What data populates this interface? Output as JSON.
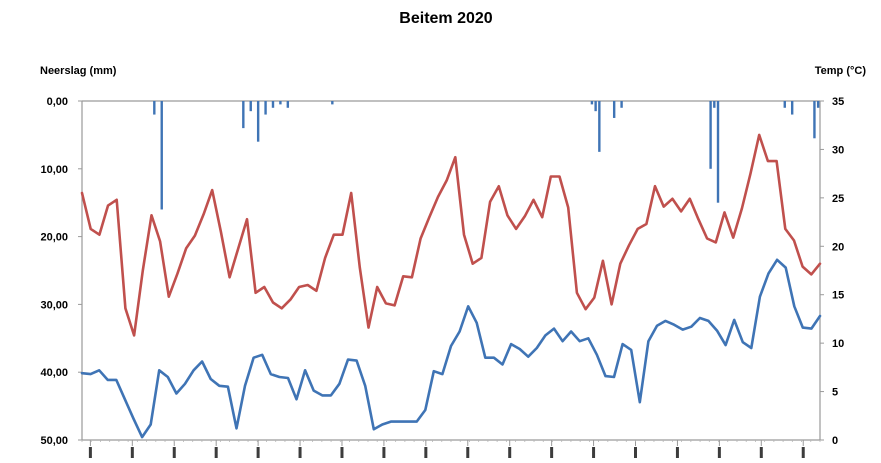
{
  "chart_data": {
    "type": "bar+line",
    "title": "Beitem 2020",
    "left_axis": {
      "label": "Neerslag (mm)",
      "ticks": [
        "0,00",
        "10,00",
        "20,00",
        "30,00",
        "40,00",
        "50,00"
      ],
      "range": [
        0,
        50
      ],
      "inverted": true
    },
    "right_axis": {
      "label": "Temp (°C)",
      "ticks": [
        "35",
        "30",
        "25",
        "20",
        "15",
        "10",
        "5",
        "0"
      ],
      "range": [
        0,
        35
      ]
    },
    "grid": false,
    "legend": "none",
    "x_tick_count": 18,
    "series": [
      {
        "kind": "bar",
        "axis": "left",
        "color": "#3f74b5",
        "values": [
          0,
          0,
          0,
          0,
          0,
          0,
          0,
          0,
          0,
          0,
          0,
          0,
          0,
          0,
          0,
          0,
          0,
          0,
          0,
          2,
          0,
          16,
          0,
          0,
          0,
          0,
          0,
          0,
          0,
          0,
          0,
          0,
          0,
          0,
          0,
          0,
          0,
          0,
          0,
          0,
          0,
          0,
          0,
          4,
          0,
          1.5,
          0,
          6,
          0,
          2,
          0,
          1,
          0,
          0.5,
          0,
          1,
          0,
          0,
          0,
          0,
          0,
          0,
          0,
          0,
          0,
          0,
          0,
          0.5,
          0,
          0,
          0,
          0,
          0,
          0,
          0,
          0,
          0,
          0,
          0,
          0,
          0,
          0,
          0,
          0,
          0,
          0,
          0,
          0,
          0,
          0,
          0,
          0,
          0,
          0,
          0,
          0,
          0,
          0,
          0,
          0,
          0,
          0,
          0,
          0,
          0,
          0,
          0,
          0,
          0,
          0,
          0,
          0,
          0,
          0,
          0,
          0,
          0,
          0,
          0,
          0,
          0,
          0,
          0,
          0,
          0,
          0,
          0,
          0,
          0,
          0,
          0,
          0,
          0,
          0,
          0,
          0,
          0,
          0.5,
          1.5,
          7.5,
          0,
          0,
          0,
          2.5,
          0,
          1,
          0,
          0,
          0,
          0,
          0,
          0,
          0,
          0,
          0,
          0,
          0,
          0,
          0,
          0,
          0,
          0,
          0,
          0,
          0,
          0,
          0,
          0,
          0,
          10,
          1,
          15,
          0,
          0,
          0,
          0,
          0,
          0,
          0,
          0,
          0,
          0,
          0,
          0,
          0,
          0,
          0,
          0,
          0,
          1,
          0,
          2,
          0,
          0,
          0,
          0,
          0,
          5.5,
          1
        ]
      },
      {
        "kind": "line",
        "axis": "right",
        "color": "#c0504d",
        "values": [
          25.5,
          21.8,
          21.2,
          24.2,
          24.8,
          13.6,
          10.8,
          17.5,
          23.2,
          20.5,
          14.8,
          17.2,
          19.8,
          21.1,
          23.3,
          25.8,
          21.5,
          16.8,
          19.8,
          22.8,
          15.2,
          15.8,
          14.2,
          13.6,
          14.5,
          15.8,
          16.0,
          15.4,
          18.8,
          21.2,
          21.2,
          25.5,
          17.8,
          11.6,
          15.8,
          14.1,
          13.9,
          16.9,
          16.8,
          20.8,
          23.0,
          25.1,
          26.8,
          29.2,
          21.2,
          18.2,
          18.8,
          24.6,
          26.2,
          23.2,
          21.8,
          23.1,
          24.8,
          23.0,
          27.2,
          27.2,
          24.0,
          15.2,
          13.5,
          14.7,
          18.5,
          14.0,
          18.2,
          20.1,
          21.8,
          22.3,
          26.2,
          24.1,
          24.9,
          23.6,
          24.9,
          22.8,
          20.8,
          20.4,
          23.5,
          20.9,
          23.9,
          27.5,
          31.5,
          28.8,
          28.8,
          21.8,
          20.6,
          17.9,
          17.1,
          18.2
        ]
      },
      {
        "kind": "line",
        "axis": "right",
        "color": "#3f74b5",
        "values": [
          6.9,
          6.8,
          7.2,
          6.2,
          6.2,
          4.2,
          2.2,
          0.3,
          1.6,
          7.2,
          6.5,
          4.8,
          5.8,
          7.2,
          8.1,
          6.3,
          5.6,
          5.5,
          1.2,
          5.6,
          8.5,
          8.8,
          6.8,
          6.5,
          6.4,
          4.2,
          7.2,
          5.1,
          4.6,
          4.6,
          5.8,
          8.3,
          8.2,
          5.6,
          1.1,
          1.6,
          1.9,
          1.9,
          1.9,
          1.9,
          3.1,
          7.1,
          6.8,
          9.7,
          11.2,
          13.8,
          12.1,
          8.5,
          8.5,
          7.8,
          9.9,
          9.4,
          8.6,
          9.5,
          10.8,
          11.5,
          10.2,
          11.2,
          10.2,
          10.5,
          8.8,
          6.6,
          6.5,
          9.9,
          9.3,
          3.9,
          10.2,
          11.8,
          12.3,
          11.9,
          11.4,
          11.7,
          12.6,
          12.3,
          11.3,
          9.8,
          12.4,
          10.1,
          9.5,
          14.8,
          17.2,
          18.6,
          17.8,
          13.8,
          11.6,
          11.5,
          12.8
        ]
      }
    ]
  }
}
